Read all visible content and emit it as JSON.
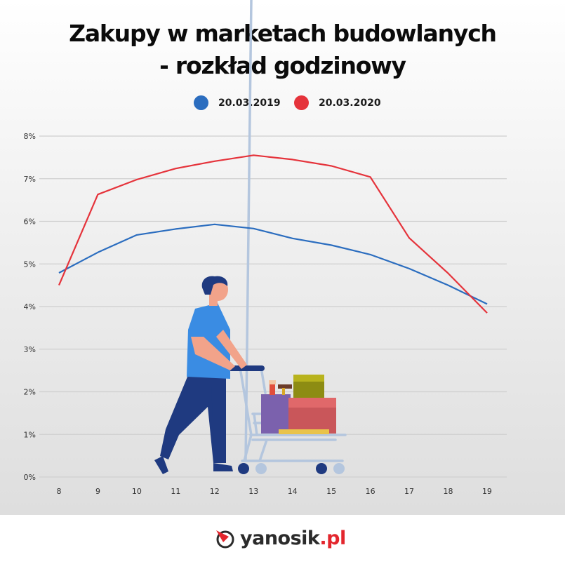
{
  "title": {
    "line1": "Zakupy w marketach budowlanych",
    "line2": "- rozkład godzinowy"
  },
  "legend": [
    {
      "label": "20.03.2019",
      "color": "#2b6dbf"
    },
    {
      "label": "20.03.2020",
      "color": "#e5333b"
    }
  ],
  "footer": {
    "logo_name": "yanosik",
    "logo_tld": ".pl"
  },
  "chart_data": {
    "type": "line",
    "title": "Zakupy w marketach budowlanych - rozkład godzinowy",
    "xlabel": "",
    "ylabel": "",
    "categories": [
      "8",
      "9",
      "10",
      "11",
      "12",
      "13",
      "14",
      "15",
      "16",
      "17",
      "18",
      "19"
    ],
    "series": [
      {
        "name": "20.03.2019",
        "color": "#2b6dbf",
        "values": [
          4.79,
          5.27,
          5.68,
          5.82,
          5.93,
          5.83,
          5.6,
          5.44,
          5.22,
          4.89,
          4.5,
          4.06
        ]
      },
      {
        "name": "20.03.2020",
        "color": "#e5333b",
        "values": [
          4.5,
          6.63,
          6.98,
          7.24,
          7.41,
          7.55,
          7.45,
          7.3,
          7.04,
          5.61,
          4.78,
          3.85
        ]
      }
    ],
    "yticks": [
      "0%",
      "1%",
      "2%",
      "3%",
      "4%",
      "5%",
      "6%",
      "7%",
      "8%"
    ],
    "ylim": [
      0,
      8
    ],
    "grid": true,
    "legend_position": "top"
  }
}
